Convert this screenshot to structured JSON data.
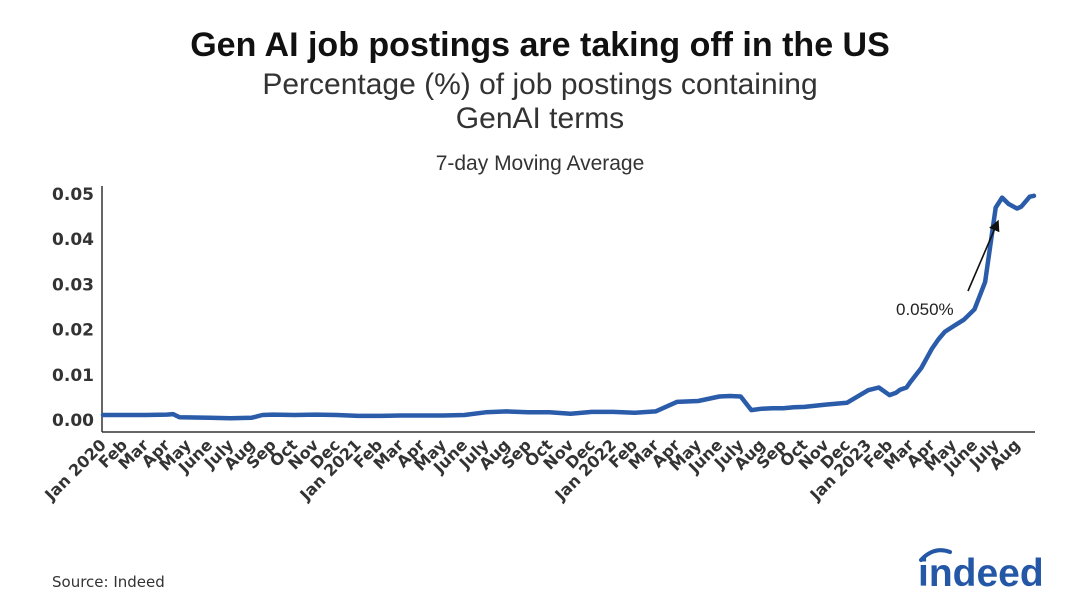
{
  "header": {
    "title": "Gen AI job postings are taking off in the US",
    "subtitle_line1": "Percentage (%) of job postings containing",
    "subtitle_line2": "GenAI terms",
    "chart_subtitle": "7-day Moving Average"
  },
  "footer": {
    "source": "Source: Indeed",
    "logo_text": "indeed"
  },
  "colors": {
    "line": "#2a5caa",
    "logo": "#2557a7"
  },
  "chart_data": {
    "type": "line",
    "title": "Gen AI job postings are taking off in the US",
    "subtitle": "Percentage (%) of job postings containing GenAI terms",
    "xlabel": "",
    "ylabel": "",
    "ylim": [
      0,
      0.05
    ],
    "yticks": [
      "0.00",
      "0.01",
      "0.02",
      "0.03",
      "0.04",
      "0.05"
    ],
    "grid": false,
    "xtick_labels": [
      "Jan 2020",
      "Feb",
      "Mar",
      "Apr",
      "May",
      "June",
      "July",
      "Aug",
      "Sep",
      "Oct",
      "Nov",
      "Dec",
      "Jan 2021",
      "Feb",
      "Mar",
      "Apr",
      "May",
      "June",
      "July",
      "Aug",
      "Sep",
      "Oct",
      "Nov",
      "Dec",
      "Jan 2022",
      "Feb",
      "Mar",
      "Apr",
      "May",
      "June",
      "July",
      "Aug",
      "Sep",
      "Oct",
      "Nov",
      "Dec",
      "Jan 2023",
      "Feb",
      "Mar",
      "Apr",
      "May",
      "June",
      "July",
      "Aug"
    ],
    "series": [
      {
        "x": [
          0,
          1,
          2,
          3,
          3.3,
          3.6,
          5,
          6,
          7,
          7.5,
          8,
          9,
          10,
          11,
          12,
          13,
          14,
          15,
          16,
          17,
          18,
          19,
          20,
          21,
          22,
          23,
          24,
          25,
          26,
          27,
          28,
          29,
          29.5,
          30,
          30.5,
          31,
          31.5,
          32,
          32.5,
          33,
          34,
          35,
          36,
          36.5,
          37,
          37.3,
          37.5,
          37.8,
          38,
          38.5,
          39,
          39.3,
          39.6,
          40,
          40.5,
          41,
          41.5,
          42,
          42.3,
          42.6,
          43,
          43.2,
          43.4,
          43.6,
          43.8
        ],
        "y": [
          0.0011,
          0.0011,
          0.0011,
          0.0012,
          0.0013,
          0.0006,
          0.0005,
          0.0004,
          0.0005,
          0.0011,
          0.0012,
          0.0011,
          0.0012,
          0.0011,
          0.0009,
          0.0009,
          0.001,
          0.001,
          0.001,
          0.0011,
          0.0017,
          0.0019,
          0.0017,
          0.0017,
          0.0014,
          0.0018,
          0.0018,
          0.0016,
          0.0019,
          0.004,
          0.0042,
          0.0052,
          0.0053,
          0.0052,
          0.0022,
          0.0025,
          0.0026,
          0.0026,
          0.0028,
          0.0029,
          0.0034,
          0.0038,
          0.0066,
          0.0072,
          0.0055,
          0.006,
          0.0067,
          0.0072,
          0.0085,
          0.0115,
          0.0158,
          0.0178,
          0.0195,
          0.0207,
          0.0222,
          0.0245,
          0.0305,
          0.047,
          0.0492,
          0.0478,
          0.0468,
          0.0472,
          0.0483,
          0.0494,
          0.0496
        ]
      }
    ],
    "annotations": [
      {
        "text": "0.050%",
        "x": 43.6,
        "y": 0.0496
      }
    ]
  }
}
